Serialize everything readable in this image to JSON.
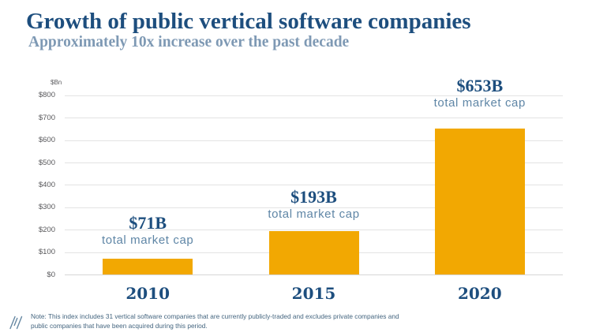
{
  "title": "Growth of public vertical software companies",
  "subtitle": "Approximately 10x increase over the past decade",
  "y_axis_unit": "$Bn",
  "note": {
    "line1": "Note: This index includes 31 vertical software companies that are currently publicly-traded and excludes private companies and",
    "line2": "public companies that have been acquired during this period."
  },
  "chart_data": {
    "type": "bar",
    "categories": [
      "2010",
      "2015",
      "2020"
    ],
    "values": [
      71,
      193,
      653
    ],
    "bar_labels": [
      "$71B",
      "$193B",
      "$653B"
    ],
    "bar_sublabel": "total market cap",
    "title": "Growth of public vertical software companies",
    "xlabel": "",
    "ylabel": "$Bn",
    "ylim": [
      0,
      800
    ],
    "ytick_step": 100,
    "ytick_prefix": "$",
    "grid": true,
    "legend": false
  },
  "colors": {
    "bar": "#F2A802",
    "title": "#1D4E7E",
    "subtitle": "#7E99B4",
    "caption": "#5F86A6",
    "tick": "#58585B",
    "gridline": "#E3E3E3",
    "baseline": "#D6D6D6",
    "note": "#44657F",
    "logo": "#6587A2"
  }
}
